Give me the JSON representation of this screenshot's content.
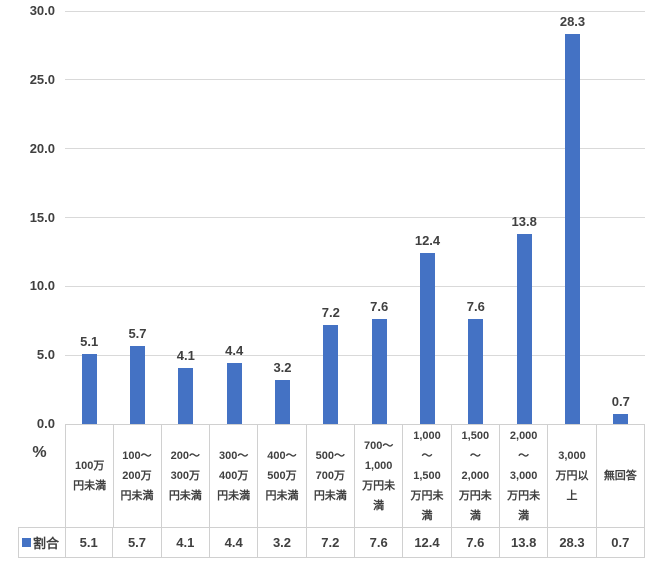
{
  "chart_data": {
    "type": "bar",
    "title": "",
    "categories": [
      "100万\n円未満",
      "100〜\n200万\n円未満",
      "200〜\n300万\n円未満",
      "300〜\n400万\n円未満",
      "400〜\n500万\n円未満",
      "500〜\n700万\n円未満",
      "700〜\n1,000\n万円未\n満",
      "1,000\n〜\n1,500\n万円未\n満",
      "1,500\n〜\n2,000\n万円未\n満",
      "2,000\n〜\n3,000\n万円未\n満",
      "3,000\n万円以\n上",
      "無回答"
    ],
    "series": [
      {
        "name": "割合",
        "values": [
          5.1,
          5.7,
          4.1,
          4.4,
          3.2,
          7.2,
          7.6,
          12.4,
          7.6,
          13.8,
          28.3,
          0.7
        ]
      }
    ],
    "data_labels": [
      "5.1",
      "5.7",
      "4.1",
      "4.4",
      "3.2",
      "7.2",
      "7.6",
      "12.4",
      "7.6",
      "13.8",
      "28.3",
      "0.7"
    ],
    "xlabel": "",
    "ylabel": "%",
    "ylim": [
      0,
      30
    ],
    "ytick_interval": 5,
    "ytick_labels": [
      "0.0",
      "5.0",
      "10.0",
      "15.0",
      "20.0",
      "25.0",
      "30.0"
    ],
    "grid": true,
    "data_table_shown": true,
    "legend_position": "data-table-left",
    "colors": {
      "bar": "#4472c4",
      "gridline": "#d9d9d9",
      "table_border": "#d0d0d0",
      "text": "#404040"
    }
  }
}
